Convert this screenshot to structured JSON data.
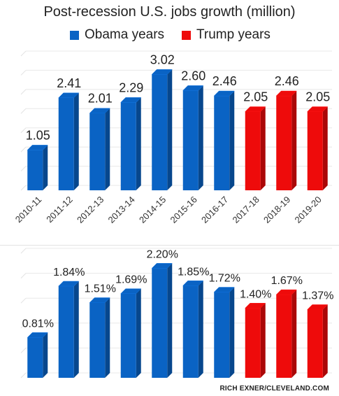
{
  "title": "Post-recession U.S. jobs growth (million)",
  "legend": [
    {
      "label": "Obama years",
      "color": "#0a63c4"
    },
    {
      "label": "Trump years",
      "color": "#ee0b0b"
    }
  ],
  "credit": "RICH EXNER/CLEVELAND.COM",
  "chart_data": [
    {
      "type": "bar",
      "title": "Post-recession U.S. jobs growth (million)",
      "categories": [
        "2010-11",
        "2011-12",
        "2012-13",
        "2013-14",
        "2014-15",
        "2015-16",
        "2016-17",
        "2017-18",
        "2018-19",
        "2019-20"
      ],
      "values": [
        1.05,
        2.41,
        2.01,
        2.29,
        3.02,
        2.6,
        2.46,
        2.05,
        2.46,
        2.05
      ],
      "value_labels": [
        "1.05",
        "2.41",
        "2.01",
        "2.29",
        "3.02",
        "2.60",
        "2.46",
        "2.05",
        "2.46",
        "2.05"
      ],
      "series_by_category": [
        "Obama years",
        "Obama years",
        "Obama years",
        "Obama years",
        "Obama years",
        "Obama years",
        "Obama years",
        "Trump years",
        "Trump years",
        "Trump years"
      ],
      "ylim": [
        0,
        3.5
      ],
      "grid": true,
      "legend_position": "top"
    },
    {
      "type": "bar",
      "categories": [
        "2010-11",
        "2011-12",
        "2012-13",
        "2013-14",
        "2014-15",
        "2015-16",
        "2016-17",
        "2017-18",
        "2018-19",
        "2019-20"
      ],
      "values": [
        0.81,
        1.84,
        1.51,
        1.69,
        2.2,
        1.85,
        1.72,
        1.4,
        1.67,
        1.37
      ],
      "value_labels": [
        "0.81%",
        "1.84%",
        "1.51%",
        "1.69%",
        "2.20%",
        "1.85%",
        "1.72%",
        "1.40%",
        "1.67%",
        "1.37%"
      ],
      "series_by_category": [
        "Obama years",
        "Obama years",
        "Obama years",
        "Obama years",
        "Obama years",
        "Obama years",
        "Obama years",
        "Trump years",
        "Trump years",
        "Trump years"
      ],
      "ylim": [
        0,
        2.5
      ],
      "grid": true
    }
  ]
}
